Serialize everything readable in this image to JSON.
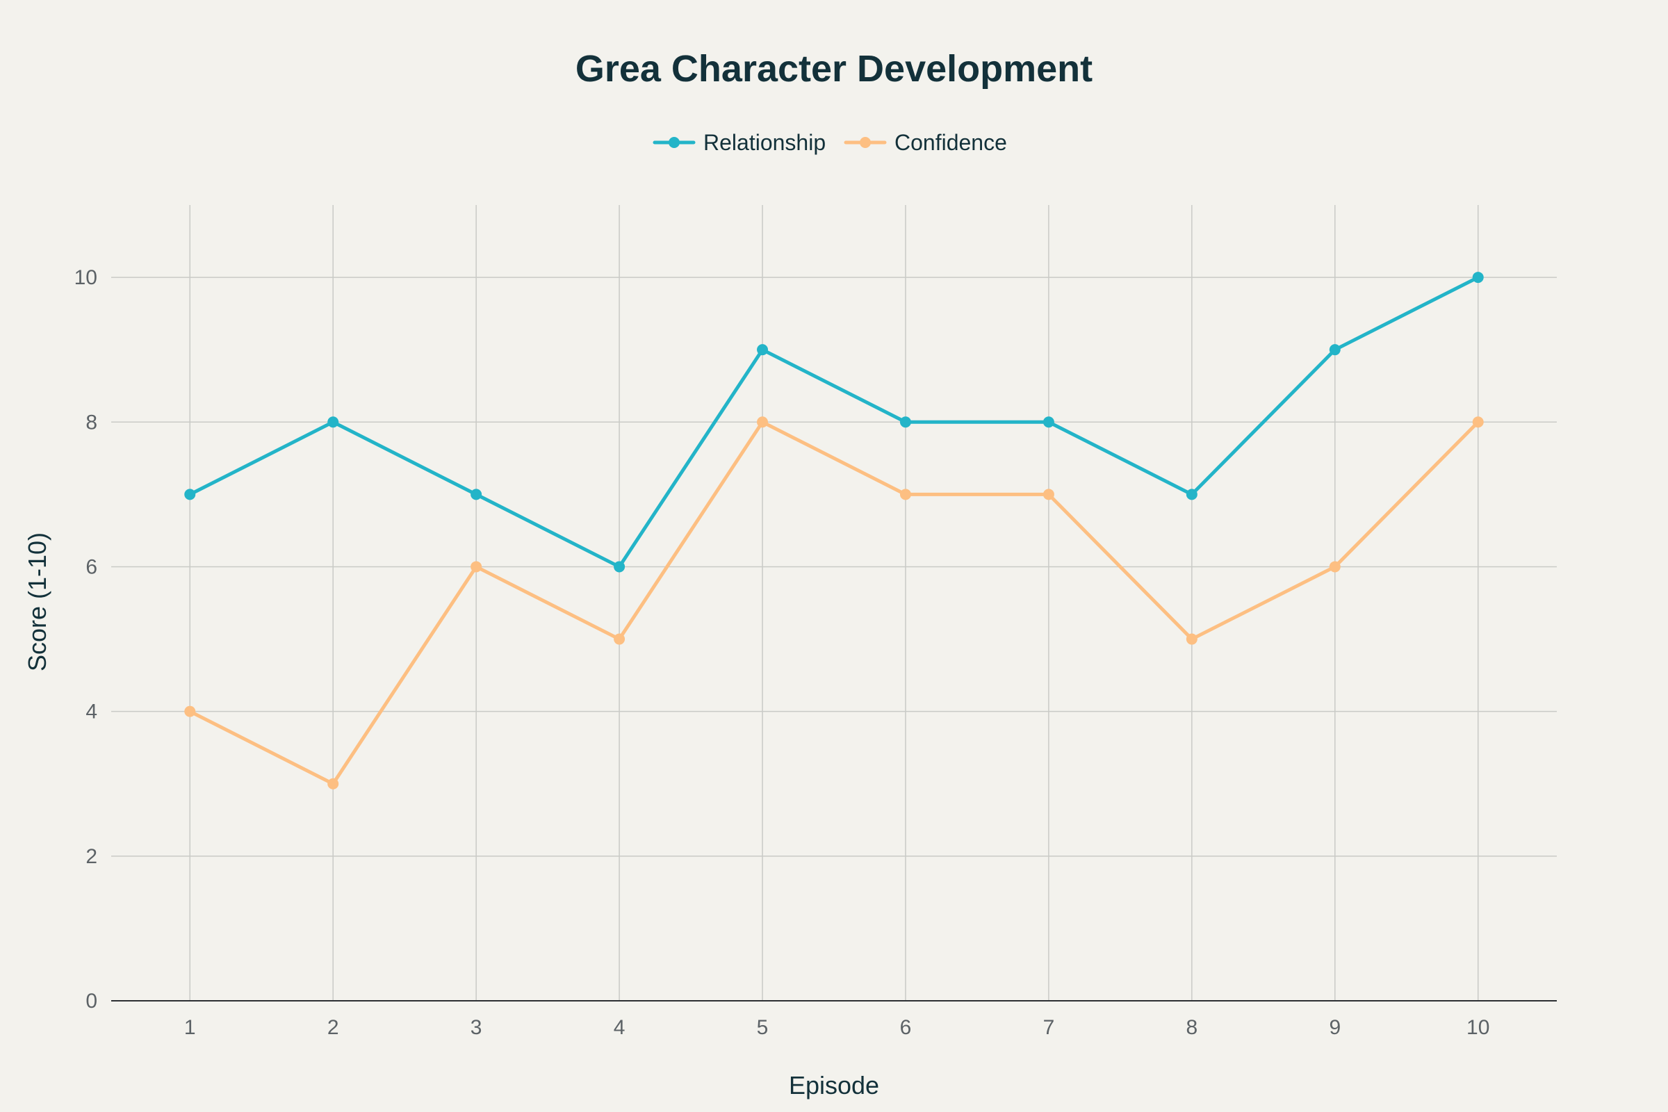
{
  "chart_data": {
    "type": "line",
    "title": "Grea Character Development",
    "xlabel": "Episode",
    "ylabel": "Score (1-10)",
    "x": [
      1,
      2,
      3,
      4,
      5,
      6,
      7,
      8,
      9,
      10
    ],
    "x_tick_labels": [
      "1",
      "2",
      "3",
      "4",
      "5",
      "6",
      "7",
      "8",
      "9",
      "10"
    ],
    "y_ticks": [
      0,
      2,
      4,
      6,
      8,
      10
    ],
    "y_tick_labels": [
      "0",
      "2",
      "4",
      "6",
      "8",
      "10"
    ],
    "xlim": [
      0.45,
      10.55
    ],
    "ylim": [
      0,
      11
    ],
    "grid": true,
    "legend_position": "top-center",
    "series": [
      {
        "name": "Relationship",
        "color": "#23b4c8",
        "values": [
          7,
          8,
          7,
          6,
          9,
          8,
          8,
          7,
          9,
          10
        ]
      },
      {
        "name": "Confidence",
        "color": "#fdbf82",
        "values": [
          4,
          3,
          6,
          5,
          8,
          7,
          7,
          5,
          6,
          8
        ]
      }
    ]
  }
}
